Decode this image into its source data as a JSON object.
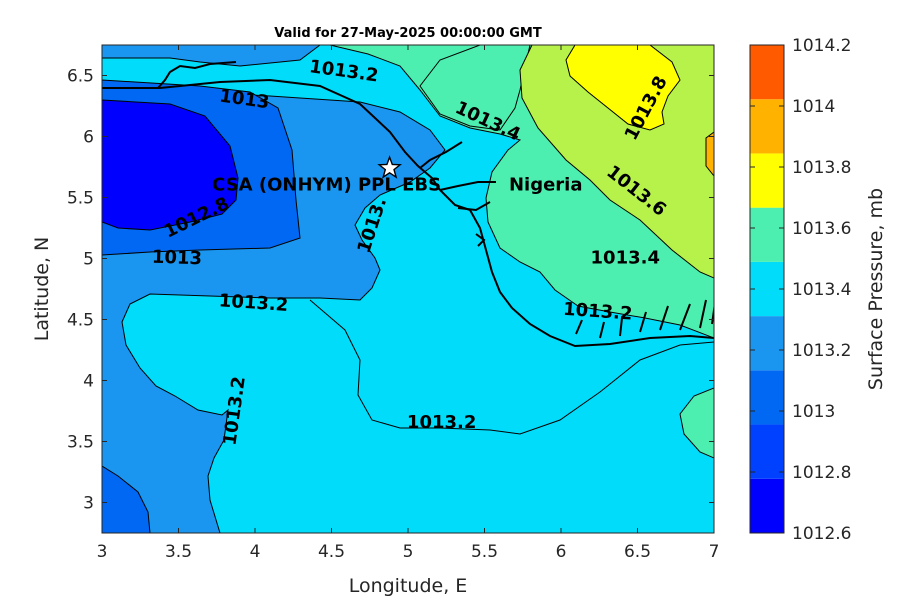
{
  "chart_data": {
    "type": "heatmap",
    "subtype": "filled-contour",
    "title": "Valid for 27-May-2025 00:00:00 GMT",
    "xlabel": "Longitude, E",
    "ylabel": "Latitude, N",
    "xlim": [
      3,
      7
    ],
    "ylim": [
      2.75,
      6.75
    ],
    "xticks": [
      "3",
      "3.5",
      "4",
      "4.5",
      "5",
      "5.5",
      "6",
      "6.5",
      "7"
    ],
    "yticks": [
      "3",
      "3.5",
      "4",
      "4.5",
      "5",
      "5.5",
      "6",
      "6.5"
    ],
    "grid": false,
    "colorbar": {
      "label": "Surface Pressure, mb",
      "ticks": [
        "1012.6",
        "1012.8",
        "1013",
        "1013.2",
        "1013.4",
        "1013.6",
        "1013.8",
        "1014",
        "1014.2"
      ],
      "levels": [
        1012.6,
        1012.7,
        1012.8,
        1012.9,
        1013.0,
        1013.1,
        1013.2,
        1013.3,
        1013.4,
        1013.5,
        1013.6,
        1013.7,
        1013.8,
        1013.9,
        1014.0,
        1014.1,
        1014.2
      ],
      "band_colors": [
        "#0000ff",
        "#0040ff",
        "#0068f2",
        "#1a96f0",
        "#00dcfa",
        "#4cefb0",
        "#ffff00",
        "#ffb300",
        "#ff5a00"
      ]
    },
    "contour_labels": [
      {
        "text": "1013.2",
        "x": 4.58,
        "y": 6.53,
        "angle": 8
      },
      {
        "text": "1013",
        "x": 3.93,
        "y": 6.3,
        "angle": 8
      },
      {
        "text": "1013.4",
        "x": 5.52,
        "y": 6.12,
        "angle": 25
      },
      {
        "text": "1013.8",
        "x": 6.56,
        "y": 6.23,
        "angle": -62
      },
      {
        "text": "1013.6",
        "x": 6.49,
        "y": 5.55,
        "angle": 38
      },
      {
        "text": "1012.8",
        "x": 3.62,
        "y": 5.33,
        "angle": -26
      },
      {
        "text": "1013.",
        "x": 4.77,
        "y": 5.27,
        "angle": -72
      },
      {
        "text": "1013",
        "x": 3.49,
        "y": 5.0,
        "angle": 2
      },
      {
        "text": "1013.4",
        "x": 6.42,
        "y": 5.0,
        "angle": 0
      },
      {
        "text": "1013.2",
        "x": 3.99,
        "y": 4.63,
        "angle": 4
      },
      {
        "text": "1013.2",
        "x": 6.24,
        "y": 4.56,
        "angle": 4
      },
      {
        "text": "1013.2",
        "x": 3.87,
        "y": 3.75,
        "angle": -82
      },
      {
        "text": "1013.2",
        "x": 5.22,
        "y": 3.65,
        "angle": 0
      }
    ],
    "annotations": [
      {
        "text": "CSA (ONHYM) PPL EBS",
        "x": 3.72,
        "y": 5.6,
        "marker": "star",
        "marker_x": 4.88,
        "marker_y": 5.74
      },
      {
        "text": "Nigeria",
        "x": 5.66,
        "y": 5.6
      }
    ]
  }
}
